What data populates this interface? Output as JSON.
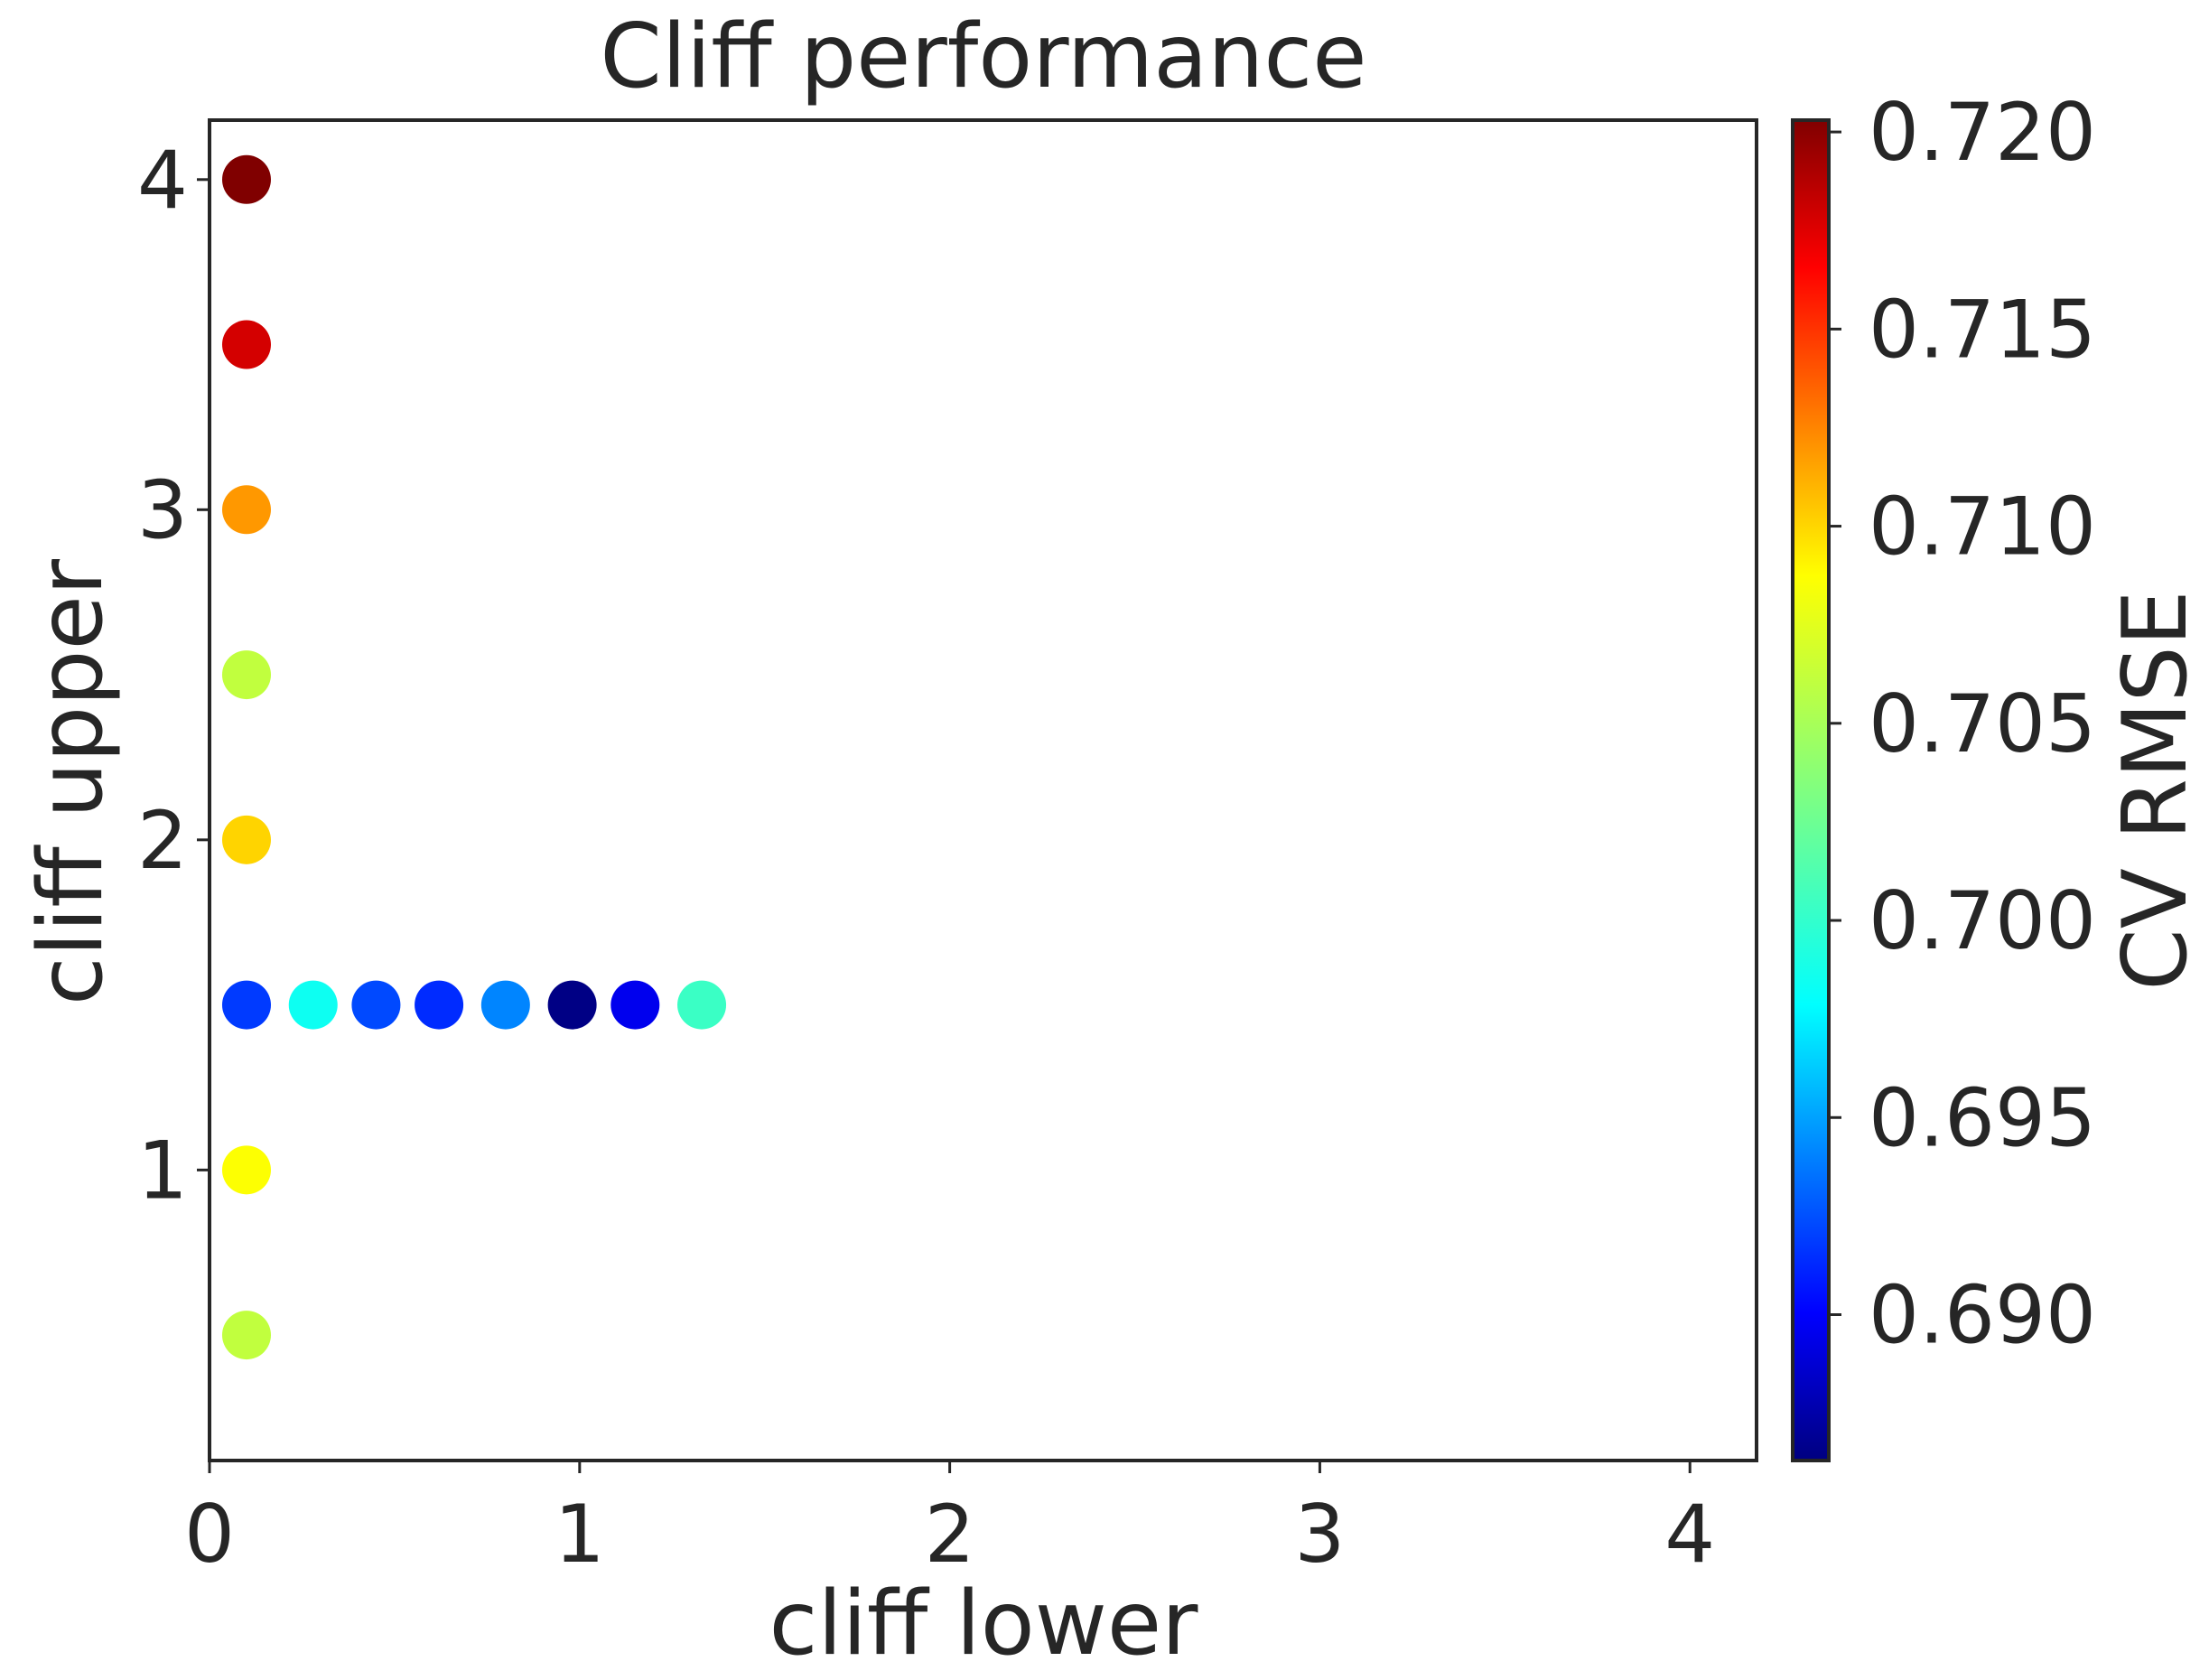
{
  "chart_data": {
    "type": "scatter",
    "title": "Cliff performance",
    "xlabel": "cliff lower",
    "ylabel": "cliff upper",
    "xlim": [
      0,
      4.18
    ],
    "ylim": [
      0.12,
      4.18
    ],
    "xticks": [
      0,
      1,
      2,
      3,
      4
    ],
    "xtick_labels": [
      "0",
      "1",
      "2",
      "3",
      "4"
    ],
    "yticks": [
      1,
      2,
      3,
      4
    ],
    "ytick_labels": [
      "1",
      "2",
      "3",
      "4"
    ],
    "grid": false,
    "colorbar": {
      "label": "CV RMSE",
      "colormap": "jet",
      "range": [
        0.6863,
        0.7203
      ],
      "ticks": [
        0.69,
        0.695,
        0.7,
        0.705,
        0.71,
        0.715,
        0.72
      ],
      "tick_labels": [
        "0.690",
        "0.695",
        "0.700",
        "0.705",
        "0.710",
        "0.715",
        "0.720"
      ]
    },
    "points": [
      {
        "x": 0.1,
        "y": 4.0,
        "value": 0.7203
      },
      {
        "x": 0.1,
        "y": 3.5,
        "value": 0.7175
      },
      {
        "x": 0.1,
        "y": 3.0,
        "value": 0.711
      },
      {
        "x": 0.1,
        "y": 2.5,
        "value": 0.7055
      },
      {
        "x": 0.1,
        "y": 2.0,
        "value": 0.709
      },
      {
        "x": 0.1,
        "y": 1.5,
        "value": 0.6925
      },
      {
        "x": 0.28,
        "y": 1.5,
        "value": 0.6995
      },
      {
        "x": 0.45,
        "y": 1.5,
        "value": 0.693
      },
      {
        "x": 0.62,
        "y": 1.5,
        "value": 0.692
      },
      {
        "x": 0.8,
        "y": 1.5,
        "value": 0.695
      },
      {
        "x": 0.98,
        "y": 1.5,
        "value": 0.6865
      },
      {
        "x": 1.15,
        "y": 1.5,
        "value": 0.69
      },
      {
        "x": 1.33,
        "y": 1.5,
        "value": 0.701
      },
      {
        "x": 0.1,
        "y": 1.0,
        "value": 0.7075
      },
      {
        "x": 0.1,
        "y": 0.5,
        "value": 0.7055
      }
    ]
  }
}
